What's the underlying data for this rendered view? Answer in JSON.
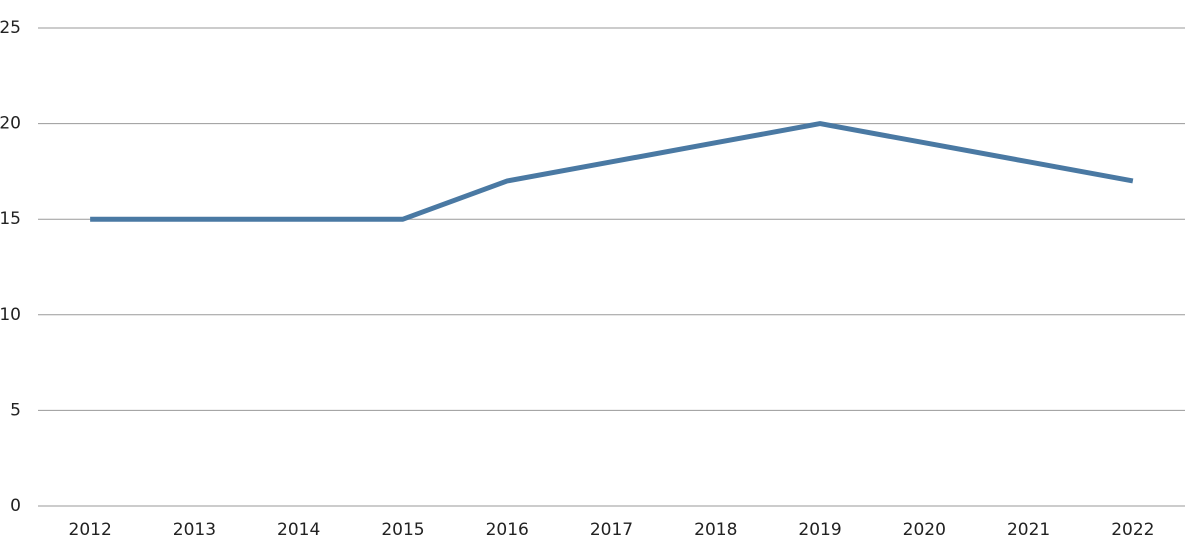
{
  "chart_data": {
    "type": "line",
    "categories": [
      "2012",
      "2013",
      "2014",
      "2015",
      "2016",
      "2017",
      "2018",
      "2019",
      "2020",
      "2021",
      "2022"
    ],
    "series": [
      {
        "color": "#4a79a3",
        "values": [
          15,
          15,
          15,
          15,
          17,
          18,
          19,
          20,
          19,
          18,
          17
        ]
      }
    ],
    "ylim": [
      0,
      25
    ],
    "yticks": [
      0,
      5,
      10,
      15,
      20,
      25
    ],
    "grid": true
  }
}
